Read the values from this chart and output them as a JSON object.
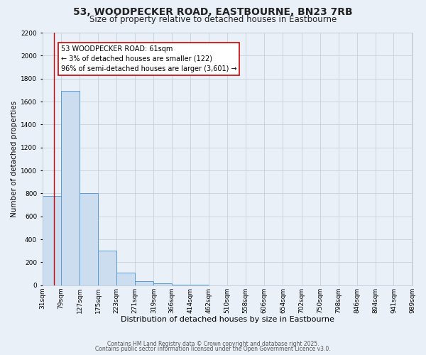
{
  "title": "53, WOODPECKER ROAD, EASTBOURNE, BN23 7RB",
  "subtitle": "Size of property relative to detached houses in Eastbourne",
  "xlabel": "Distribution of detached houses by size in Eastbourne",
  "ylabel": "Number of detached properties",
  "bin_edges": [
    31,
    79,
    127,
    175,
    223,
    271,
    319,
    366,
    414,
    462,
    510,
    558,
    606,
    654,
    702,
    750,
    798,
    846,
    894,
    941,
    989
  ],
  "bar_heights": [
    780,
    1690,
    800,
    300,
    110,
    35,
    15,
    5,
    2,
    0,
    0,
    0,
    0,
    0,
    0,
    0,
    0,
    0,
    0,
    0
  ],
  "bar_color": "#ccddf0",
  "bar_edgecolor": "#5b9bd5",
  "red_line_x": 61,
  "annotation_text": "53 WOODPECKER ROAD: 61sqm\n← 3% of detached houses are smaller (122)\n96% of semi-detached houses are larger (3,601) →",
  "annotation_box_edgecolor": "#cc0000",
  "annotation_box_facecolor": "#ffffff",
  "ylim": [
    0,
    2200
  ],
  "yticks": [
    0,
    200,
    400,
    600,
    800,
    1000,
    1200,
    1400,
    1600,
    1800,
    2000,
    2200
  ],
  "background_color": "#eaf0f8",
  "grid_color": "#c0ccd8",
  "title_fontsize": 10,
  "subtitle_fontsize": 8.5,
  "footer_line1": "Contains HM Land Registry data © Crown copyright and database right 2025.",
  "footer_line2": "Contains public sector information licensed under the Open Government Licence v3.0.",
  "tick_label_fontsize": 6.5,
  "xlabel_fontsize": 8,
  "ylabel_fontsize": 7.5
}
